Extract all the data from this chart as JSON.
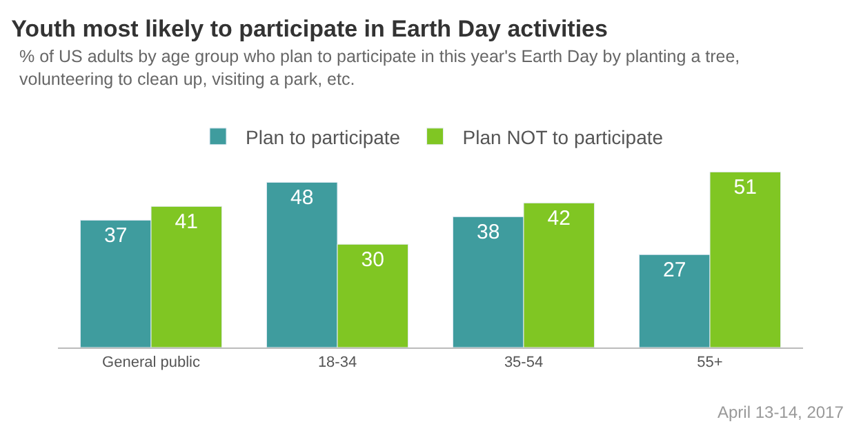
{
  "chart_data": {
    "type": "bar",
    "title": "Youth most likely to participate in Earth Day activities",
    "subtitle": "% of US adults by age group who plan to participate in this year's Earth Day by planting a tree, volunteering to clean up, visiting a park, etc.",
    "categories": [
      "General public",
      "18-34",
      "35-54",
      "55+"
    ],
    "series": [
      {
        "name": "Plan to participate",
        "color": "#3f9c9e",
        "values": [
          37,
          48,
          38,
          27
        ]
      },
      {
        "name": "Plan NOT to participate",
        "color": "#80c623",
        "values": [
          41,
          30,
          42,
          51
        ]
      }
    ],
    "data_labels": true,
    "legend": "top",
    "annotations": [
      "April 13-14, 2017"
    ]
  }
}
